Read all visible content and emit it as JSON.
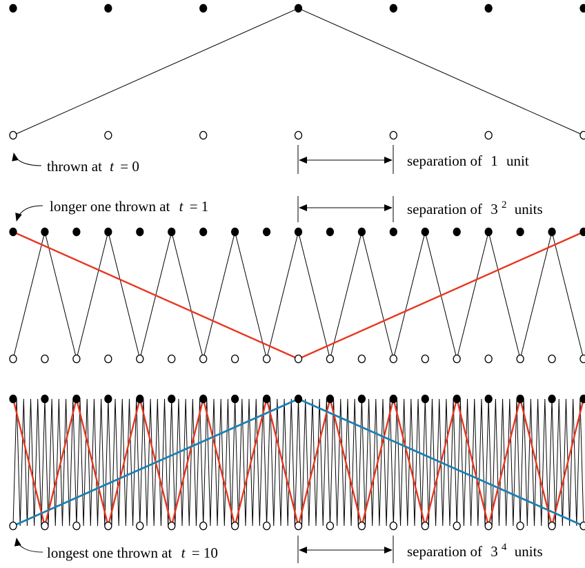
{
  "colors": {
    "dot": "#000000",
    "line": "#000000",
    "red_chain": "#e8361f",
    "blue_chain": "#1b7fb3",
    "background": "#ffffff"
  },
  "panels": [
    {
      "name": "panel-1",
      "label": "thrown at",
      "time_var": "t",
      "time_value": "= 0",
      "separation_text": "separation of",
      "separation_base": "1",
      "separation_exp": "",
      "separation_unit": "unit"
    },
    {
      "name": "panel-2",
      "label": "longer one thrown at",
      "time_var": "t",
      "time_value": "= 1",
      "separation_text": "separation of",
      "separation_base": "3",
      "separation_exp": "2",
      "separation_unit": "units"
    },
    {
      "name": "panel-3",
      "label": "longest one thrown at",
      "time_var": "t",
      "time_value": "= 10",
      "separation_text": "separation of",
      "separation_base": "3",
      "separation_exp": "4",
      "separation_unit": "units"
    }
  ]
}
